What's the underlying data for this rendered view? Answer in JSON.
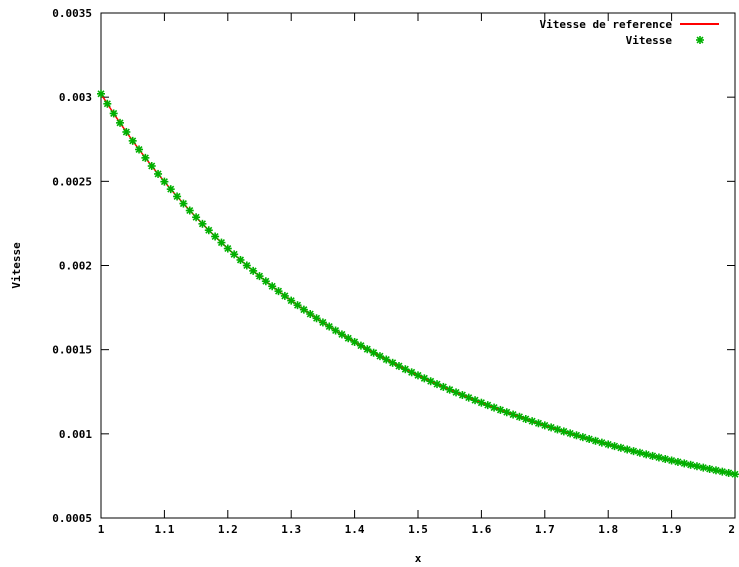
{
  "chart_data": {
    "type": "line",
    "xlabel": "x",
    "ylabel": "Vitesse",
    "xlim": [
      1,
      2
    ],
    "ylim": [
      0.0005,
      0.0035
    ],
    "x_ticks": [
      "1",
      "1.1",
      "1.2",
      "1.3",
      "1.4",
      "1.5",
      "1.6",
      "1.7",
      "1.8",
      "1.9",
      "2"
    ],
    "y_ticks": [
      "0.0005",
      "0.001",
      "0.0015",
      "0.002",
      "0.0025",
      "0.003",
      "0.0035"
    ],
    "legend_position": "top-right",
    "grid": false,
    "series": [
      {
        "name": "Vitesse de reference",
        "style": "line",
        "color": "#ff0000",
        "x": [
          1.0,
          1.05,
          1.1,
          1.15,
          1.2,
          1.25,
          1.3,
          1.35,
          1.4,
          1.45,
          1.5,
          1.55,
          1.6,
          1.65,
          1.7,
          1.75,
          1.8,
          1.85,
          1.9,
          1.95,
          2.0
        ],
        "y": [
          0.00302,
          0.00274,
          0.0025,
          0.00228,
          0.0021,
          0.00193,
          0.00179,
          0.00165,
          0.00154,
          0.00143,
          0.00134,
          0.00126,
          0.00118,
          0.00111,
          0.00105,
          0.00099,
          0.00093,
          0.00088,
          0.00084,
          0.00079,
          0.00076
        ]
      },
      {
        "name": "Vitesse",
        "style": "points",
        "color": "#00b000",
        "x": [
          1.0,
          1.05,
          1.1,
          1.15,
          1.2,
          1.25,
          1.3,
          1.35,
          1.4,
          1.45,
          1.5,
          1.55,
          1.6,
          1.65,
          1.7,
          1.75,
          1.8,
          1.85,
          1.9,
          1.95,
          2.0
        ],
        "y": [
          0.00302,
          0.00274,
          0.0025,
          0.00228,
          0.0021,
          0.00193,
          0.00179,
          0.00165,
          0.00154,
          0.00143,
          0.00134,
          0.00126,
          0.00118,
          0.00111,
          0.00105,
          0.00099,
          0.00093,
          0.00088,
          0.00084,
          0.00079,
          0.00076
        ]
      }
    ]
  }
}
